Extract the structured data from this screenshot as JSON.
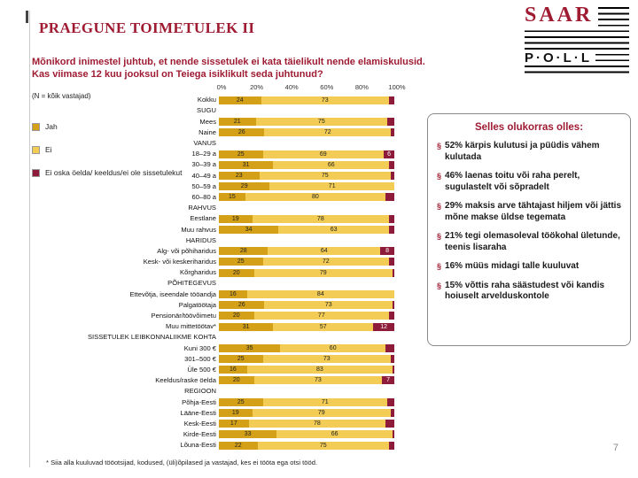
{
  "slide": {
    "title": "PRAEGUNE TOIMETULEK II",
    "subtitle": "Mõnikord inimestel juhtub, et nende sissetulek ei kata täielikult nende elamiskulusid. Kas viimase 12 kuu jooksul on Teiega isiklikult seda juhtunud?",
    "sample_note": "(N = kõik vastajad)",
    "footnote": "* Siia alla kuuluvad tööotsijad, kodused, (üli)õpilased ja vastajad, kes ei tööta ega otsi tööd.",
    "page_number": "7"
  },
  "logo": {
    "saar": "SAAR",
    "poll": "P·O·L·L"
  },
  "colors": {
    "accent": "#9E1B32",
    "jah": "#D4A017",
    "ei": "#F2CC54",
    "muu": "#8E1B3A"
  },
  "callout": {
    "title": "Selles olukorras olles:",
    "bullet_char": "§",
    "bullets": [
      "52% kärpis kulutusi ja püüdis vähem kulutada",
      "46% laenas toitu või raha perelt, sugulastelt või sõpradelt",
      "29% maksis arve tähtajast hiljem või jättis mõne makse üldse tegemata",
      "21% tegi olemasoleval töökohal ületunde, teenis lisaraha",
      "16% müüs midagi talle kuuluvat",
      "15% võttis raha säästudest või kandis hoiuselt arvelduskontole"
    ]
  },
  "chart_data": {
    "type": "bar",
    "stacked": true,
    "orientation": "horizontal",
    "xlim": [
      0,
      100
    ],
    "x_ticks": [
      "0%",
      "20%",
      "40%",
      "60%",
      "80%",
      "100%"
    ],
    "legend": [
      {
        "label": "Jah",
        "color": "#D4A017"
      },
      {
        "label": "Ei",
        "color": "#F2CC54"
      },
      {
        "label": "Ei oska öelda/ keeldus/ei ole sissetulekut",
        "color": "#8E1B3A"
      }
    ],
    "rows": [
      {
        "label": "Kokku",
        "values": [
          24,
          73,
          3
        ]
      },
      {
        "label": "SUGU",
        "header": true
      },
      {
        "label": "Mees",
        "values": [
          21,
          75,
          4
        ]
      },
      {
        "label": "Naine",
        "values": [
          26,
          72,
          2
        ]
      },
      {
        "label": "VANUS",
        "header": true
      },
      {
        "label": "18–29 a",
        "values": [
          25,
          69,
          6
        ]
      },
      {
        "label": "30–39 a",
        "values": [
          31,
          66,
          3
        ]
      },
      {
        "label": "40–49 a",
        "values": [
          23,
          75,
          2
        ]
      },
      {
        "label": "50–59 a",
        "values": [
          29,
          71,
          0
        ]
      },
      {
        "label": "60–80 a",
        "values": [
          15,
          80,
          5
        ]
      },
      {
        "label": "RAHVUS",
        "header": true
      },
      {
        "label": "Eestlane",
        "values": [
          19,
          78,
          3
        ]
      },
      {
        "label": "Muu rahvus",
        "values": [
          34,
          63,
          3
        ]
      },
      {
        "label": "HARIDUS",
        "header": true
      },
      {
        "label": "Alg- või põhiharidus",
        "values": [
          28,
          64,
          8
        ]
      },
      {
        "label": "Kesk- või keskeriharidus",
        "values": [
          25,
          72,
          3
        ]
      },
      {
        "label": "Kõrgharidus",
        "values": [
          20,
          79,
          1
        ]
      },
      {
        "label": "PÕHITEGEVUS",
        "header": true
      },
      {
        "label": "Ettevõtja, iseendale tööandja",
        "values": [
          16,
          84,
          0
        ]
      },
      {
        "label": "Palgatöötaja",
        "values": [
          26,
          73,
          1
        ]
      },
      {
        "label": "Pensionär/töövõimetu",
        "values": [
          20,
          77,
          3
        ]
      },
      {
        "label": "Muu mittetöötav*",
        "values": [
          31,
          57,
          12
        ]
      },
      {
        "label": "SISSETULEK LEIBKONNALIIKME KOHTA",
        "header": true
      },
      {
        "label": "Kuni 300 €",
        "values": [
          35,
          60,
          5
        ]
      },
      {
        "label": "301–500 €",
        "values": [
          25,
          73,
          2
        ]
      },
      {
        "label": "Üle 500 €",
        "values": [
          16,
          83,
          1
        ]
      },
      {
        "label": "Keeldus/raske öelda",
        "values": [
          20,
          73,
          7
        ]
      },
      {
        "label": "REGIOON",
        "header": true
      },
      {
        "label": "Põhja-Eesti",
        "values": [
          25,
          71,
          4
        ]
      },
      {
        "label": "Lääne-Eesti",
        "values": [
          19,
          79,
          2
        ]
      },
      {
        "label": "Kesk-Eesti",
        "values": [
          17,
          78,
          5
        ]
      },
      {
        "label": "Kirde-Eesti",
        "values": [
          33,
          66,
          1
        ]
      },
      {
        "label": "Lõuna-Eesti",
        "values": [
          22,
          75,
          3
        ]
      }
    ]
  }
}
